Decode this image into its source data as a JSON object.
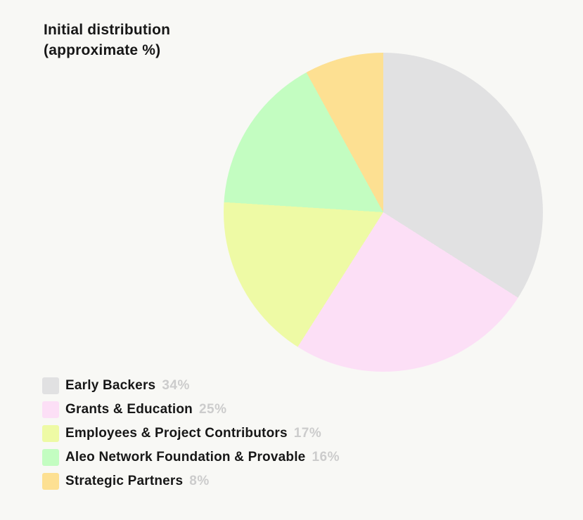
{
  "page": {
    "background": "#f8f8f5"
  },
  "title": {
    "line1": "Initial distribution",
    "line2": "(approximate %)"
  },
  "chart_data": {
    "type": "pie",
    "title": "Initial distribution (approximate %)",
    "start_angle_deg": 0,
    "direction": "clockwise",
    "legend_position": "bottom-left",
    "label_color": "#171717",
    "percent_label_color": "#cccccc",
    "slices": [
      {
        "label": "Early Backers",
        "value": 34,
        "percent_label": "34%",
        "color": "#e1e1e2"
      },
      {
        "label": "Grants & Education",
        "value": 25,
        "percent_label": "25%",
        "color": "#fcdff6"
      },
      {
        "label": "Employees & Project Contributors",
        "value": 17,
        "percent_label": "17%",
        "color": "#eefaa5"
      },
      {
        "label": "Aleo Network Foundation & Provable",
        "value": 16,
        "percent_label": "16%",
        "color": "#c3fdc1"
      },
      {
        "label": "Strategic Partners",
        "value": 8,
        "percent_label": "8%",
        "color": "#fde092"
      }
    ]
  }
}
